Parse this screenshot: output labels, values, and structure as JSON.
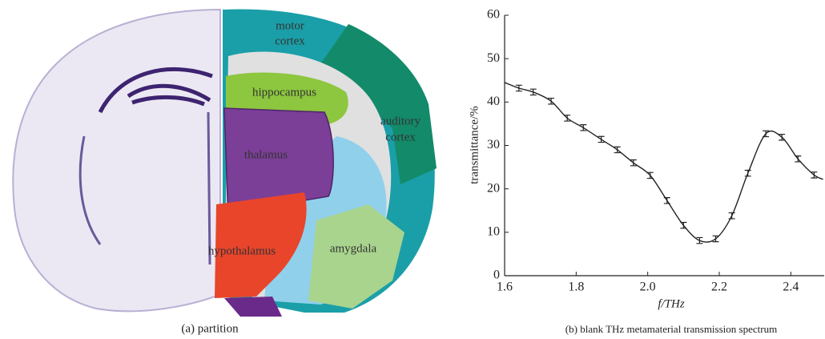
{
  "panel_a": {
    "labels": {
      "motor": "motor",
      "cortex1": "cortex",
      "hippocampus": "hippocampus",
      "auditory": "auditory",
      "cortex2": "cortex",
      "thalamus": "thalamus",
      "hypothalamus": "hypothalamus",
      "amygdala": "amygdala"
    },
    "caption": "(a) partition"
  },
  "chart_data": {
    "type": "line",
    "caption": "(b) blank THz metamaterial transmission spectrum",
    "xlabel": "f/THz",
    "ylabel": "transmittance/%",
    "x": [
      1.6,
      1.64,
      1.68,
      1.73,
      1.775,
      1.82,
      1.87,
      1.915,
      1.96,
      2.007,
      2.054,
      2.1,
      2.145,
      2.19,
      2.235,
      2.28,
      2.33,
      2.375,
      2.42,
      2.465,
      2.49
    ],
    "series": [
      {
        "color": "#222222",
        "values": [
          44.5,
          43.2,
          42.3,
          40.2,
          36.3,
          34.1,
          31.4,
          29.0,
          26.0,
          23.1,
          17.3,
          11.6,
          8.1,
          8.5,
          13.8,
          23.6,
          32.7,
          31.9,
          26.9,
          23.2,
          22.2
        ],
        "errors": [
          null,
          0.4,
          0.4,
          0.4,
          0.4,
          0.4,
          0.4,
          0.4,
          0.4,
          0.4,
          0.4,
          0.4,
          0.4,
          0.4,
          0.4,
          0.4,
          0.4,
          0.4,
          0.4,
          0.4,
          null
        ]
      }
    ],
    "xlim": [
      1.6,
      2.5
    ],
    "ylim": [
      0,
      60
    ],
    "xticks": [
      1.6,
      1.8,
      {
        "value": 2,
        "label": "2.0"
      },
      2.2,
      2.4
    ],
    "yticks": [
      0,
      10,
      20,
      30,
      40,
      50,
      60
    ]
  }
}
